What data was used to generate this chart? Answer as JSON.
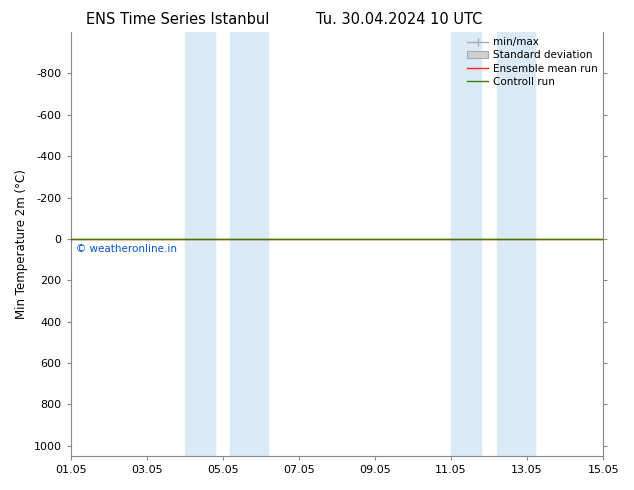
{
  "title_left": "ENS Time Series Istanbul",
  "title_right": "Tu. 30.04.2024 10 UTC",
  "ylabel": "Min Temperature 2m (°C)",
  "ylim_bottom": 1050,
  "ylim_top": -1000,
  "yticks": [
    -800,
    -600,
    -400,
    -200,
    0,
    200,
    400,
    600,
    800,
    1000
  ],
  "xtick_labels": [
    "01.05",
    "03.05",
    "05.05",
    "07.05",
    "09.05",
    "11.05",
    "13.05",
    "15.05"
  ],
  "xtick_positions": [
    0,
    2,
    4,
    6,
    8,
    10,
    12,
    14
  ],
  "x_start": 0,
  "x_end": 14,
  "blue_bands": [
    [
      3.0,
      3.8
    ],
    [
      4.2,
      5.2
    ],
    [
      10.0,
      10.8
    ],
    [
      11.2,
      12.2
    ]
  ],
  "blue_band_color": "#daeaf7",
  "control_run_color": "#3a7d00",
  "ensemble_mean_color": "#ff2200",
  "copyright_text": "© weatheronline.in",
  "copyright_color": "#0055cc",
  "legend_labels": [
    "min/max",
    "Standard deviation",
    "Ensemble mean run",
    "Controll run"
  ],
  "background_color": "#ffffff",
  "title_fontsize": 10.5,
  "axis_fontsize": 8.5,
  "tick_fontsize": 8
}
